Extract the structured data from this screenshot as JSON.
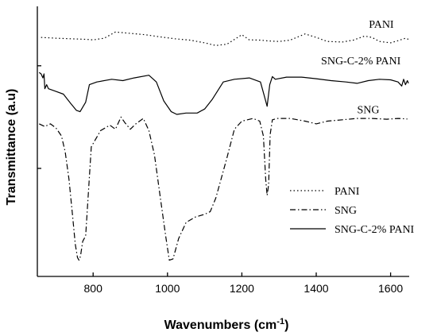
{
  "chart_data": {
    "type": "line",
    "xlabel_main": "Wavenumbers (cm",
    "xlabel_sup": "-1",
    "xlabel_tail": ")",
    "ylabel": "Transmittance (a.u)",
    "xlim": [
      650,
      1650
    ],
    "xticks": [
      800,
      1000,
      1200,
      1400,
      1600
    ],
    "xtick_labels": [
      "800",
      "1000",
      "1200",
      "1400",
      "1600"
    ],
    "ylim": [
      0,
      100
    ],
    "yticks": [
      40,
      78
    ],
    "grid": false,
    "legend": {
      "placement": "bottom-right",
      "entries": [
        {
          "name": "PANI",
          "dash": "dotted"
        },
        {
          "name": "SNG",
          "dash": "dashdot"
        },
        {
          "name": "SNG-C-2% PANI",
          "dash": "solid"
        }
      ]
    },
    "series": [
      {
        "name": "PANI",
        "dash": "dotted",
        "label_x": 1575,
        "label_y": 92,
        "x": [
          660,
          700,
          740,
          780,
          800,
          830,
          860,
          900,
          940,
          980,
          1020,
          1060,
          1100,
          1130,
          1160,
          1200,
          1220,
          1250,
          1270,
          1300,
          1330,
          1370,
          1400,
          1430,
          1470,
          1500,
          1530,
          1550,
          1570,
          1600,
          1620,
          1640,
          1648
        ],
        "y": [
          88.5,
          88.2,
          88.0,
          87.8,
          87.6,
          88.2,
          90.5,
          90.0,
          89.5,
          88.7,
          88.0,
          87.5,
          86.5,
          85.5,
          86.0,
          89.5,
          87.6,
          87.5,
          87.2,
          87.0,
          87.5,
          89.8,
          88.5,
          87.0,
          86.8,
          87.5,
          89.0,
          88.5,
          87.0,
          86.5,
          87.3,
          88.2,
          87.8
        ]
      },
      {
        "name": "SNG-C-2% PANI",
        "dash": "solid",
        "label_x": 1520,
        "label_y": 78.5,
        "x": [
          655,
          660,
          665,
          668,
          670,
          675,
          680,
          700,
          720,
          740,
          755,
          765,
          780,
          790,
          810,
          850,
          880,
          910,
          950,
          970,
          990,
          1010,
          1025,
          1050,
          1080,
          1100,
          1120,
          1150,
          1180,
          1220,
          1250,
          1260,
          1268,
          1275,
          1282,
          1290,
          1320,
          1360,
          1400,
          1440,
          1480,
          1510,
          1540,
          1570,
          1600,
          1620,
          1630,
          1635,
          1640,
          1645,
          1648
        ],
        "y": [
          75.5,
          75,
          73.5,
          75.0,
          69.5,
          71.0,
          69.5,
          68.5,
          67.5,
          64.0,
          61.5,
          61.0,
          64.5,
          71.0,
          72.0,
          73.0,
          72.5,
          73.5,
          74.5,
          72.0,
          65.0,
          61.0,
          60.0,
          60.5,
          60.5,
          62.0,
          65.5,
          72.0,
          73.0,
          73.5,
          72.0,
          67.0,
          63.0,
          71.0,
          74.0,
          73.0,
          73.8,
          73.8,
          73.2,
          72.5,
          72.0,
          71.5,
          72.5,
          73.0,
          72.8,
          72.0,
          70.5,
          73.0,
          71.0,
          72.5,
          71.5
        ]
      },
      {
        "name": "SNG",
        "dash": "dashdot",
        "label_x": 1540,
        "label_y": 60.5,
        "x": [
          655,
          670,
          685,
          700,
          715,
          725,
          735,
          745,
          752,
          758,
          762,
          766,
          772,
          780,
          795,
          820,
          845,
          860,
          875,
          885,
          900,
          915,
          935,
          950,
          965,
          980,
          995,
          1005,
          1015,
          1030,
          1050,
          1075,
          1100,
          1115,
          1130,
          1160,
          1180,
          1200,
          1230,
          1248,
          1258,
          1264,
          1268,
          1272,
          1276,
          1282,
          1295,
          1330,
          1370,
          1400,
          1430,
          1470,
          1510,
          1550,
          1590,
          1620,
          1645
        ],
        "y": [
          56.5,
          55.5,
          56.5,
          55.0,
          52.0,
          46.0,
          36.0,
          22.0,
          12.0,
          7.0,
          6.0,
          7.5,
          13.0,
          15.0,
          48.0,
          54.0,
          56.0,
          54.5,
          59.0,
          57.0,
          54.5,
          56.5,
          58.5,
          54.0,
          45.0,
          30.0,
          15.0,
          6.0,
          6.5,
          14.0,
          20.0,
          22.0,
          23.0,
          24.0,
          29.0,
          44.0,
          54.5,
          57.5,
          58.5,
          57.5,
          52.0,
          36.0,
          30.0,
          34.0,
          52.5,
          58.0,
          58.5,
          58.5,
          57.5,
          56.5,
          57.5,
          58.0,
          58.5,
          58.5,
          58.2,
          58.5,
          58.3
        ]
      }
    ]
  }
}
